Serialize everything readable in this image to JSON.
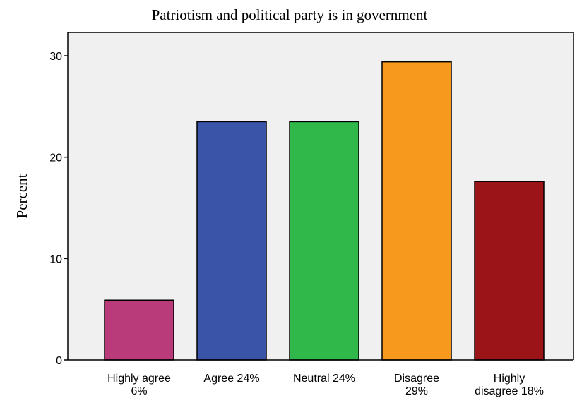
{
  "chart_data": {
    "type": "bar",
    "title": "Patriotism and political party is in government",
    "xlabel": "",
    "ylabel": "Percent",
    "ylim": [
      0,
      32.3
    ],
    "yticks": [
      0,
      10,
      20,
      30
    ],
    "grid": false,
    "categories": [
      [
        "Highly agree",
        "6%"
      ],
      [
        "Agree 24%"
      ],
      [
        "Neutral 24%"
      ],
      [
        "Disagree",
        "29%"
      ],
      [
        "Highly",
        "disagree 18%"
      ]
    ],
    "values": [
      5.9,
      23.5,
      23.5,
      29.4,
      17.6
    ],
    "colors": [
      "#b93b79",
      "#3a54a8",
      "#30b94a",
      "#f7991c",
      "#9b1418"
    ]
  },
  "style": {
    "plot_background": "#f0f0f0",
    "axis_color": "#000000",
    "bar_outline": "#000000"
  }
}
